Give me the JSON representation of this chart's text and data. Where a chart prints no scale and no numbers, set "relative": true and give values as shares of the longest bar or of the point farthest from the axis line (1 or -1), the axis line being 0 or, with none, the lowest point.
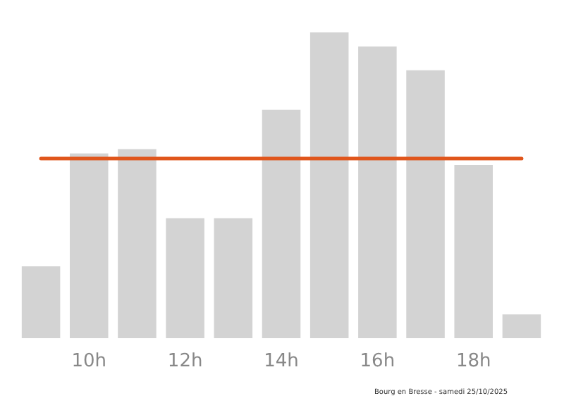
{
  "chart_data": {
    "type": "bar",
    "relative": true,
    "categories": [
      null,
      "10h",
      null,
      "12h",
      null,
      "14h",
      null,
      "16h",
      null,
      "18h",
      null
    ],
    "values": [
      0.235,
      0.604,
      0.618,
      0.392,
      0.392,
      0.747,
      1,
      0.954,
      0.876,
      0.567,
      0.078
    ],
    "color": "#d3d3d3",
    "ref_lines": [
      {
        "axis": "y",
        "value": 0.59,
        "color": "#e0561c",
        "line_style": "solid"
      }
    ],
    "grid": false,
    "annotations": [
      "Bourg en Bresse - samedi 25/10/2025"
    ]
  }
}
